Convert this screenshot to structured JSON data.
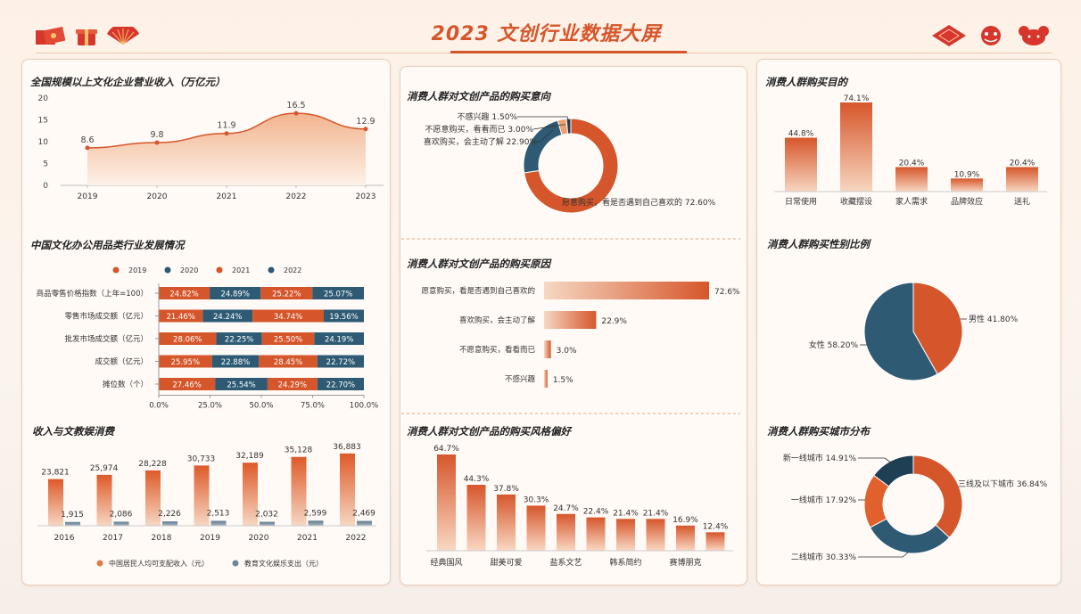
{
  "header": {
    "title": "2023 文创行业数据大屏"
  },
  "colors": {
    "accent": "#d6562b",
    "dark": "#2e5a74",
    "orange": "#e0612c"
  },
  "icons": {
    "left": [
      "red-envelope-icon",
      "gift-box-icon",
      "fan-icon"
    ],
    "right": [
      "paper-cut-icon",
      "lion-icon",
      "mouse-icon"
    ]
  },
  "panels": {
    "revenue": {
      "title": "全国规模以上文化企业营业收入（万亿元）"
    },
    "office": {
      "title": "中国文化办公用品类行业发展情况"
    },
    "income": {
      "title": "收入与文教娱消费"
    },
    "intent": {
      "title": "消费人群对文创产品的购买意向"
    },
    "reason": {
      "title": "消费人群对文创产品的购买原因"
    },
    "style": {
      "title": "消费人群对文创产品的购买风格偏好"
    },
    "purpose": {
      "title": "消费人群购买目的"
    },
    "gender": {
      "title": "消费人群购买性别比例"
    },
    "city": {
      "title": "消费人群购买城市分布"
    }
  },
  "chart_data": [
    {
      "id": "revenue",
      "type": "area",
      "title": "全国规模以上文化企业营业收入（万亿元）",
      "x": [
        "2019",
        "2020",
        "2021",
        "2022",
        "2023"
      ],
      "values": [
        8.6,
        9.8,
        11.9,
        16.5,
        12.9
      ],
      "value_labels": [
        "8.6",
        "9.8",
        "11.9",
        "16.5",
        "12.9"
      ],
      "ylim": [
        0,
        20
      ],
      "yticks": [
        "0",
        "5",
        "10",
        "15",
        "20"
      ]
    },
    {
      "id": "office",
      "type": "bar",
      "stacked_percent": true,
      "title": "中国文化办公用品类行业发展情况",
      "categories": [
        "商品零售价格指数（上年=100）",
        "零售市场成交额（亿元）",
        "批发市场成交额（亿元）",
        "成交额（亿元）",
        "摊位数（个）"
      ],
      "series": [
        {
          "name": "2019",
          "values": [
            24.82,
            21.46,
            28.06,
            25.95,
            27.46
          ],
          "labels": [
            "24.82%",
            "21.46%",
            "28.06%",
            "25.95%",
            "27.46%"
          ]
        },
        {
          "name": "2020",
          "values": [
            24.89,
            24.24,
            22.25,
            22.88,
            25.54
          ],
          "labels": [
            "24.89%",
            "24.24%",
            "22.25%",
            "22.88%",
            "25.54%"
          ]
        },
        {
          "name": "2021",
          "values": [
            25.22,
            34.74,
            25.5,
            28.45,
            24.29
          ],
          "labels": [
            "25.22%",
            "34.74%",
            "25.50%",
            "28.45%",
            "24.29%"
          ]
        },
        {
          "name": "2022",
          "values": [
            25.07,
            19.56,
            24.19,
            22.72,
            22.7
          ],
          "labels": [
            "25.07%",
            "19.56%",
            "24.19%",
            "22.72%",
            "22.70%"
          ]
        }
      ],
      "xticks": [
        "0.0%",
        "25.0%",
        "50.0%",
        "75.0%",
        "100.0%"
      ]
    },
    {
      "id": "income",
      "type": "bar",
      "title": "收入与文教娱消费",
      "categories": [
        "2016",
        "2017",
        "2018",
        "2019",
        "2020",
        "2021",
        "2022"
      ],
      "series": [
        {
          "name": "中国居民人均可支配收入（元）",
          "values": [
            23821,
            25974,
            28228,
            30733,
            32189,
            35128,
            36883
          ],
          "labels": [
            "23,821",
            "25,974",
            "28,228",
            "30,733",
            "32,189",
            "35,128",
            "36,883"
          ]
        },
        {
          "name": "教育文化娱乐支出（元）",
          "values": [
            1915,
            2086,
            2226,
            2513,
            2032,
            2599,
            2469
          ],
          "labels": [
            "1,915",
            "2,086",
            "2,226",
            "2,513",
            "2,032",
            "2,599",
            "2,469"
          ]
        }
      ]
    },
    {
      "id": "intent",
      "type": "pie",
      "donut": true,
      "title": "消费人群对文创产品的购买意向",
      "slices": [
        {
          "label": "愿意购买，看是否遇到自己喜欢的 72.60%",
          "value": 72.6,
          "color": "#d6562b"
        },
        {
          "label": "喜欢购买，会主动了解 22.90%",
          "value": 22.9,
          "color": "#2e5a74"
        },
        {
          "label": "不愿意购买，看看而已 3.00%",
          "value": 3.0,
          "color": "#f0a070"
        },
        {
          "label": "不感兴趣 1.50%",
          "value": 1.5,
          "color": "#1f3f54"
        }
      ]
    },
    {
      "id": "reason",
      "type": "bar",
      "orientation": "horizontal",
      "title": "消费人群对文创产品的购买原因",
      "categories": [
        "愿意购买，看是否遇到自己喜欢的",
        "喜欢购买，会主动了解",
        "不愿意购买，看看而已",
        "不感兴趣"
      ],
      "values": [
        72.6,
        22.9,
        3.0,
        1.5
      ],
      "labels": [
        "72.6%",
        "22.9%",
        "3.0%",
        "1.5%"
      ]
    },
    {
      "id": "style",
      "type": "bar",
      "title": "消费人群对文创产品的购买风格偏好",
      "values": [
        64.7,
        44.3,
        37.8,
        30.3,
        24.7,
        22.4,
        21.4,
        21.4,
        16.9,
        12.4
      ],
      "labels": [
        "64.7%",
        "44.3%",
        "37.8%",
        "30.3%",
        "24.7%",
        "22.4%",
        "21.4%",
        "21.4%",
        "16.9%",
        "12.4%"
      ],
      "xtick_labels": [
        "经典国风",
        "甜美可爱",
        "盐系文艺",
        "韩系简约",
        "赛博朋克"
      ]
    },
    {
      "id": "purpose",
      "type": "bar",
      "title": "消费人群购买目的",
      "categories": [
        "日常使用",
        "收藏摆设",
        "家人需求",
        "品牌效应",
        "送礼"
      ],
      "values": [
        44.8,
        74.1,
        20.4,
        10.9,
        20.4
      ],
      "labels": [
        "44.8%",
        "74.1%",
        "20.4%",
        "10.9%",
        "20.4%"
      ]
    },
    {
      "id": "gender",
      "type": "pie",
      "title": "消费人群购买性别比例",
      "slices": [
        {
          "label": "男性 41.80%",
          "value": 41.8,
          "color": "#d6562b"
        },
        {
          "label": "女性 58.20%",
          "value": 58.2,
          "color": "#2e5a74"
        }
      ]
    },
    {
      "id": "city",
      "type": "pie",
      "donut": true,
      "title": "消费人群购买城市分布",
      "slices": [
        {
          "label": "三线及以下城市 36.84%",
          "value": 36.84,
          "color": "#d6562b"
        },
        {
          "label": "二线城市 30.33%",
          "value": 30.33,
          "color": "#2e5a74"
        },
        {
          "label": "一线城市 17.92%",
          "value": 17.92,
          "color": "#e0612c"
        },
        {
          "label": "新一线城市 14.91%",
          "value": 14.91,
          "color": "#1f3f54"
        }
      ]
    }
  ]
}
